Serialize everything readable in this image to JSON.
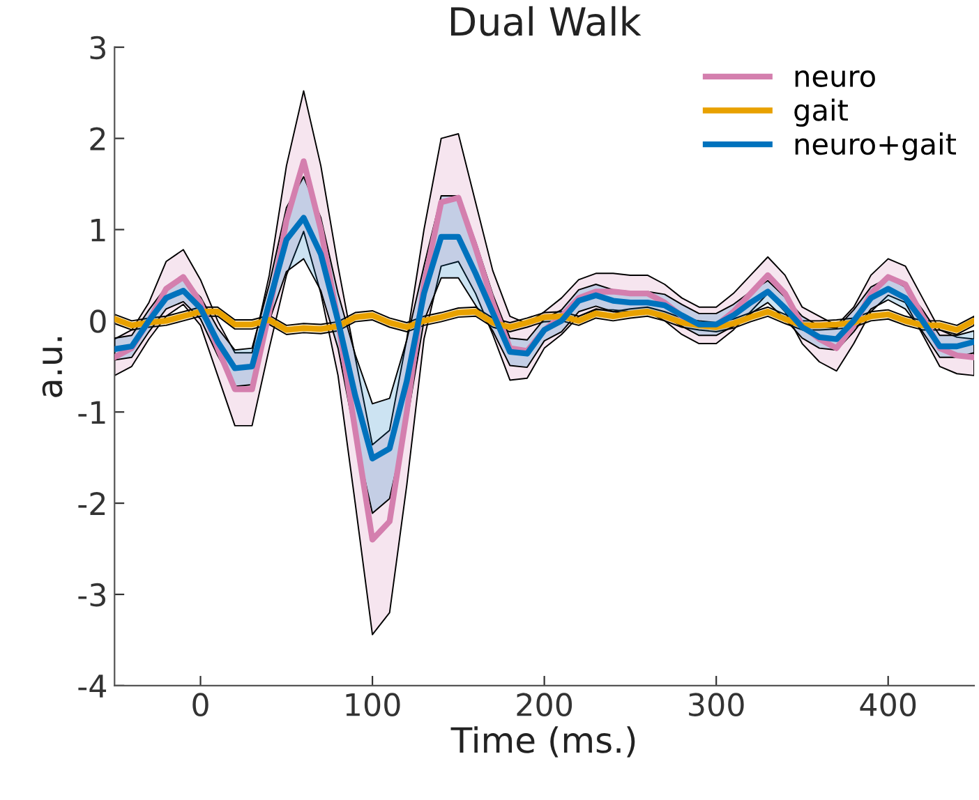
{
  "chart_data": {
    "type": "line",
    "title": "Dual Walk",
    "xlabel": "Time (ms.)",
    "ylabel": "a.u.",
    "x": [
      -50,
      -40,
      -30,
      -20,
      -10,
      0,
      10,
      20,
      30,
      40,
      50,
      60,
      70,
      80,
      90,
      100,
      110,
      120,
      130,
      140,
      150,
      160,
      170,
      180,
      190,
      200,
      210,
      220,
      230,
      240,
      250,
      260,
      270,
      280,
      290,
      300,
      310,
      320,
      330,
      340,
      350,
      360,
      370,
      380,
      390,
      400,
      410,
      420,
      430,
      440,
      450
    ],
    "series": [
      {
        "name": "neuro",
        "color": "#d47fae",
        "values": [
          -0.4,
          -0.3,
          0,
          0.35,
          0.48,
          0.2,
          -0.3,
          -0.75,
          -0.75,
          0.1,
          1.1,
          1.75,
          1.0,
          0,
          -1.2,
          -2.4,
          -2.2,
          -1.0,
          0.4,
          1.3,
          1.35,
          0.8,
          0.2,
          -0.3,
          -0.33,
          -0.1,
          0.05,
          0.25,
          0.32,
          0.32,
          0.3,
          0.3,
          0.2,
          0.05,
          -0.05,
          -0.05,
          0.1,
          0.3,
          0.5,
          0.3,
          -0.05,
          -0.2,
          -0.3,
          -0.05,
          0.3,
          0.48,
          0.4,
          0.05,
          -0.3,
          -0.38,
          -0.4
        ],
        "upper": [
          -0.2,
          -0.1,
          0.2,
          0.65,
          0.78,
          0.45,
          0,
          -0.35,
          -0.35,
          0.5,
          1.7,
          2.52,
          1.7,
          0.6,
          -0.4,
          -1.36,
          -1.2,
          -0.2,
          1.0,
          2.0,
          2.05,
          1.3,
          0.55,
          0.05,
          -0.03,
          0.1,
          0.25,
          0.45,
          0.52,
          0.52,
          0.5,
          0.5,
          0.4,
          0.25,
          0.15,
          0.15,
          0.3,
          0.5,
          0.7,
          0.5,
          0.15,
          0.05,
          -0.05,
          0.15,
          0.5,
          0.68,
          0.6,
          0.25,
          -0.1,
          -0.18,
          -0.2
        ],
        "lower": [
          -0.6,
          -0.5,
          -0.2,
          0.05,
          0.18,
          -0.05,
          -0.6,
          -1.15,
          -1.15,
          -0.3,
          0.5,
          0.98,
          0.3,
          -0.6,
          -2.0,
          -3.44,
          -3.2,
          -1.8,
          -0.2,
          0.6,
          0.65,
          0.3,
          -0.15,
          -0.65,
          -0.63,
          -0.3,
          -0.15,
          0.05,
          0.12,
          0.12,
          0.1,
          0.1,
          0,
          -0.15,
          -0.25,
          -0.25,
          -0.1,
          0.1,
          0.3,
          0.1,
          -0.25,
          -0.45,
          -0.55,
          -0.25,
          0.1,
          0.28,
          0.2,
          -0.15,
          -0.5,
          -0.58,
          -0.6
        ]
      },
      {
        "name": "gait",
        "color": "#e8a100",
        "values": [
          0.02,
          -0.05,
          -0.02,
          0,
          0.05,
          0.1,
          0.1,
          -0.04,
          -0.04,
          0.01,
          -0.1,
          -0.08,
          -0.09,
          -0.06,
          0.04,
          0.06,
          -0.02,
          -0.07,
          0,
          0.04,
          0.09,
          0.1,
          -0.02,
          -0.07,
          -0.02,
          0.04,
          0.05,
          0,
          0.08,
          0.05,
          0.08,
          0.1,
          0.05,
          -0.02,
          -0.05,
          -0.07,
          -0.03,
          0.04,
          0.1,
          0.02,
          -0.05,
          -0.05,
          -0.04,
          -0.02,
          0.05,
          0.07,
          0,
          -0.05,
          -0.05,
          -0.1,
          0
        ],
        "upper": [
          0.07,
          0,
          0.03,
          0.05,
          0.1,
          0.15,
          0.15,
          0.01,
          0.01,
          0.06,
          -0.05,
          -0.03,
          -0.04,
          -0.01,
          0.09,
          0.11,
          0.03,
          -0.02,
          0.05,
          0.09,
          0.14,
          0.15,
          0.03,
          -0.02,
          0.03,
          0.09,
          0.1,
          0.05,
          0.13,
          0.1,
          0.13,
          0.15,
          0.1,
          0.03,
          0,
          -0.02,
          0.02,
          0.09,
          0.15,
          0.07,
          0,
          0,
          0.01,
          0.03,
          0.1,
          0.12,
          0.05,
          0,
          0,
          -0.05,
          0.05
        ],
        "lower": [
          -0.03,
          -0.1,
          -0.07,
          -0.05,
          0,
          0.05,
          0.05,
          -0.09,
          -0.09,
          -0.04,
          -0.15,
          -0.13,
          -0.14,
          -0.11,
          -0.01,
          0.01,
          -0.07,
          -0.12,
          -0.05,
          -0.01,
          0.04,
          0.05,
          -0.07,
          -0.12,
          -0.07,
          -0.01,
          0,
          -0.05,
          0.03,
          0,
          0.03,
          0.05,
          0,
          -0.07,
          -0.1,
          -0.12,
          -0.08,
          -0.01,
          0.05,
          -0.03,
          -0.1,
          -0.1,
          -0.09,
          -0.07,
          0,
          0.02,
          -0.05,
          -0.1,
          -0.1,
          -0.15,
          -0.05
        ]
      },
      {
        "name": "neuro+gait",
        "color": "#0072bd",
        "values": [
          -0.31,
          -0.28,
          0,
          0.25,
          0.33,
          0.14,
          -0.23,
          -0.52,
          -0.5,
          0.2,
          0.89,
          1.13,
          0.73,
          0,
          -0.82,
          -1.51,
          -1.4,
          -0.66,
          0.3,
          0.92,
          0.92,
          0.52,
          0.09,
          -0.34,
          -0.36,
          -0.1,
          0,
          0.22,
          0.28,
          0.22,
          0.2,
          0.2,
          0.17,
          0.06,
          -0.04,
          -0.04,
          0.06,
          0.2,
          0.32,
          0.14,
          -0.07,
          -0.18,
          -0.2,
          0,
          0.25,
          0.35,
          0.25,
          0,
          -0.28,
          -0.28,
          -0.23
        ],
        "upper": [
          -0.19,
          -0.16,
          0.12,
          0.37,
          0.45,
          0.26,
          -0.08,
          -0.32,
          -0.3,
          0.4,
          1.24,
          1.58,
          1.13,
          0.3,
          -0.37,
          -0.91,
          -0.85,
          -0.21,
          0.6,
          1.37,
          1.37,
          0.87,
          0.29,
          -0.19,
          -0.21,
          0.02,
          0.12,
          0.34,
          0.4,
          0.34,
          0.32,
          0.32,
          0.29,
          0.18,
          0.08,
          0.08,
          0.18,
          0.32,
          0.44,
          0.26,
          0.05,
          -0.06,
          -0.08,
          0.12,
          0.37,
          0.47,
          0.37,
          0.12,
          -0.16,
          -0.16,
          -0.11
        ],
        "lower": [
          -0.43,
          -0.4,
          -0.12,
          0.13,
          0.21,
          0.02,
          -0.38,
          -0.72,
          -0.7,
          0,
          0.54,
          0.68,
          0.33,
          -0.3,
          -1.27,
          -2.11,
          -1.95,
          -1.11,
          0,
          0.47,
          0.47,
          0.17,
          -0.11,
          -0.49,
          -0.51,
          -0.22,
          -0.12,
          0.1,
          0.16,
          0.1,
          0.08,
          0.08,
          0.05,
          -0.06,
          -0.16,
          -0.16,
          -0.06,
          0.08,
          0.2,
          0.02,
          -0.19,
          -0.3,
          -0.32,
          -0.12,
          0.13,
          0.23,
          0.13,
          -0.12,
          -0.4,
          -0.4,
          -0.35
        ]
      }
    ],
    "xlim": [
      -50,
      450
    ],
    "xticks": [
      0,
      100,
      200,
      300,
      400
    ],
    "ylim": [
      -4,
      3
    ],
    "yticks": [
      -4,
      -3,
      -2,
      -1,
      0,
      1,
      2,
      3
    ],
    "grid": false,
    "legend": "top right",
    "marker": "none",
    "line_style": "solid"
  }
}
